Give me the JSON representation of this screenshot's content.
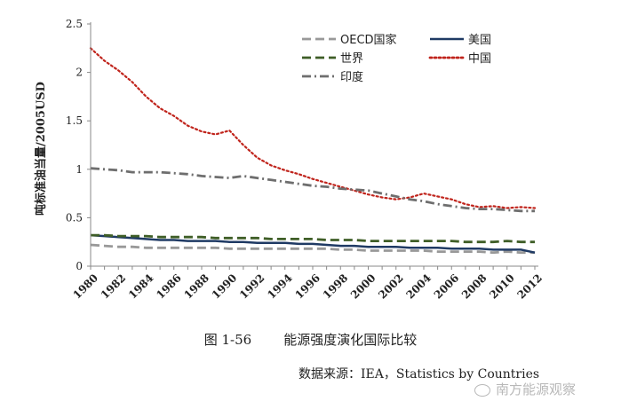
{
  "chart_data": {
    "type": "line",
    "title": "",
    "xlabel": "",
    "ylabel": "吨标准油当量/2005USD",
    "ylim": [
      0,
      2.5
    ],
    "yticks": [
      "0",
      "0.5",
      "1",
      "1.5",
      "2",
      "2.5"
    ],
    "x": [
      1980,
      1981,
      1982,
      1983,
      1984,
      1985,
      1986,
      1987,
      1988,
      1989,
      1990,
      1991,
      1992,
      1993,
      1994,
      1995,
      1996,
      1997,
      1998,
      1999,
      2000,
      2001,
      2002,
      2003,
      2004,
      2005,
      2006,
      2007,
      2008,
      2009,
      2010,
      2011,
      2012
    ],
    "xtick_labels": [
      "1980",
      "1982",
      "1984",
      "1986",
      "1988",
      "1990",
      "1992",
      "1994",
      "1996",
      "1998",
      "2000",
      "2002",
      "2004",
      "2006",
      "2008",
      "2010",
      "2012"
    ],
    "grid": false,
    "legend_position": "top-right",
    "series": [
      {
        "name": "OECD国家",
        "color": "#999999",
        "style": "dash",
        "values": [
          0.22,
          0.21,
          0.2,
          0.2,
          0.19,
          0.19,
          0.19,
          0.19,
          0.19,
          0.19,
          0.18,
          0.18,
          0.18,
          0.18,
          0.18,
          0.18,
          0.18,
          0.18,
          0.17,
          0.17,
          0.16,
          0.16,
          0.16,
          0.16,
          0.16,
          0.15,
          0.15,
          0.15,
          0.15,
          0.14,
          0.15,
          0.14,
          0.14
        ]
      },
      {
        "name": "美国",
        "color": "#1f3a64",
        "style": "solid",
        "values": [
          0.32,
          0.31,
          0.3,
          0.29,
          0.28,
          0.27,
          0.27,
          0.26,
          0.26,
          0.26,
          0.25,
          0.25,
          0.24,
          0.24,
          0.24,
          0.23,
          0.23,
          0.22,
          0.21,
          0.21,
          0.2,
          0.2,
          0.2,
          0.19,
          0.19,
          0.19,
          0.18,
          0.18,
          0.18,
          0.17,
          0.17,
          0.17,
          0.14
        ]
      },
      {
        "name": "世界",
        "color": "#3f5e27",
        "style": "dash",
        "values": [
          0.32,
          0.32,
          0.31,
          0.31,
          0.31,
          0.3,
          0.3,
          0.3,
          0.3,
          0.29,
          0.29,
          0.29,
          0.29,
          0.28,
          0.28,
          0.28,
          0.28,
          0.27,
          0.27,
          0.27,
          0.26,
          0.26,
          0.26,
          0.26,
          0.26,
          0.26,
          0.26,
          0.25,
          0.25,
          0.25,
          0.26,
          0.25,
          0.25
        ]
      },
      {
        "name": "中国",
        "color": "#c0241c",
        "style": "dot",
        "values": [
          2.25,
          2.12,
          2.02,
          1.9,
          1.75,
          1.63,
          1.55,
          1.45,
          1.39,
          1.36,
          1.4,
          1.25,
          1.12,
          1.04,
          0.99,
          0.95,
          0.9,
          0.86,
          0.82,
          0.78,
          0.74,
          0.71,
          0.69,
          0.71,
          0.75,
          0.72,
          0.69,
          0.64,
          0.61,
          0.62,
          0.6,
          0.61,
          0.6
        ]
      },
      {
        "name": "印度",
        "color": "#6e6e6e",
        "style": "dashdot",
        "values": [
          1.01,
          1.0,
          0.99,
          0.97,
          0.97,
          0.97,
          0.96,
          0.95,
          0.93,
          0.92,
          0.91,
          0.93,
          0.91,
          0.89,
          0.87,
          0.85,
          0.83,
          0.82,
          0.8,
          0.79,
          0.78,
          0.75,
          0.72,
          0.69,
          0.67,
          0.64,
          0.62,
          0.6,
          0.59,
          0.59,
          0.58,
          0.57,
          0.57
        ]
      }
    ]
  },
  "caption": {
    "figure_number": "图 1-56",
    "title": "能源强度演化国际比较"
  },
  "source_note": "数据来源：IEA，Statistics by Countries",
  "watermark": "南方能源观察"
}
